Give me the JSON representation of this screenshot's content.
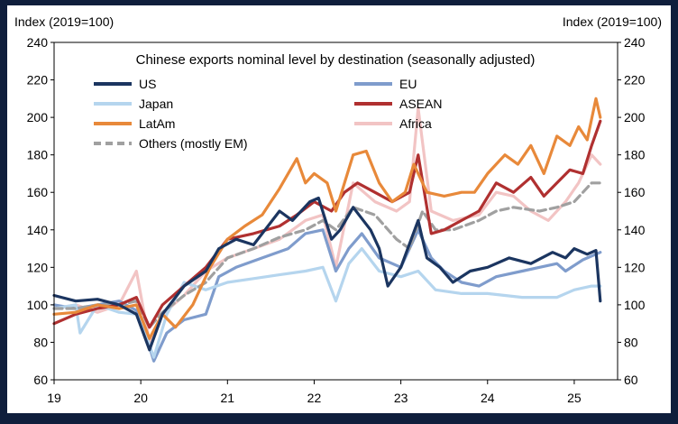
{
  "chart_data": {
    "type": "line",
    "title": "Chinese exports nominal level by destination (seasonally adjusted)",
    "left_axis_label": "Index (2019=100)",
    "right_axis_label": "Index (2019=100)",
    "ylim": [
      60,
      240
    ],
    "yticks": [
      "60",
      "80",
      "100",
      "120",
      "140",
      "160",
      "180",
      "200",
      "220",
      "240"
    ],
    "xlim": [
      2019.0,
      2025.5
    ],
    "xticks": [
      "19",
      "20",
      "21",
      "22",
      "23",
      "24",
      "25"
    ],
    "grid": false,
    "legend": "top-left, inside plot",
    "series": [
      {
        "name": "US",
        "color": "#1b3560",
        "dash": false,
        "x": [
          2019.0,
          2019.25,
          2019.5,
          2019.75,
          2019.95,
          2020.1,
          2020.25,
          2020.5,
          2020.75,
          2020.9,
          2021.1,
          2021.3,
          2021.6,
          2021.75,
          2021.95,
          2022.05,
          2022.2,
          2022.3,
          2022.45,
          2022.65,
          2022.75,
          2022.85,
          2023.0,
          2023.2,
          2023.3,
          2023.45,
          2023.6,
          2023.8,
          2024.0,
          2024.25,
          2024.5,
          2024.75,
          2024.9,
          2025.0,
          2025.15,
          2025.25,
          2025.3
        ],
        "y": [
          105,
          102,
          103,
          100,
          95,
          76,
          95,
          110,
          118,
          130,
          135,
          132,
          150,
          145,
          155,
          157,
          135,
          140,
          152,
          140,
          130,
          110,
          120,
          145,
          125,
          120,
          112,
          118,
          120,
          125,
          122,
          128,
          125,
          130,
          127,
          129,
          102
        ]
      },
      {
        "name": "EU",
        "color": "#7f9ccc",
        "dash": false,
        "x": [
          2019.0,
          2019.25,
          2019.5,
          2019.75,
          2019.95,
          2020.05,
          2020.15,
          2020.3,
          2020.5,
          2020.75,
          2020.9,
          2021.1,
          2021.4,
          2021.7,
          2021.9,
          2022.1,
          2022.25,
          2022.4,
          2022.55,
          2022.75,
          2023.0,
          2023.2,
          2023.35,
          2023.5,
          2023.7,
          2023.9,
          2024.1,
          2024.4,
          2024.6,
          2024.8,
          2024.9,
          2025.1,
          2025.3
        ],
        "y": [
          100,
          98,
          100,
          102,
          97,
          85,
          70,
          85,
          92,
          95,
          115,
          120,
          125,
          130,
          138,
          140,
          118,
          130,
          138,
          125,
          120,
          140,
          125,
          118,
          112,
          110,
          115,
          118,
          120,
          122,
          118,
          124,
          128
        ]
      },
      {
        "name": "Japan",
        "color": "#b5d5ee",
        "dash": false,
        "x": [
          2019.0,
          2019.25,
          2019.3,
          2019.5,
          2019.75,
          2019.95,
          2020.05,
          2020.15,
          2020.3,
          2020.5,
          2020.75,
          2021.0,
          2021.3,
          2021.6,
          2021.9,
          2022.1,
          2022.25,
          2022.4,
          2022.55,
          2022.75,
          2023.0,
          2023.2,
          2023.4,
          2023.7,
          2024.0,
          2024.4,
          2024.8,
          2025.0,
          2025.2,
          2025.3
        ],
        "y": [
          98,
          100,
          85,
          100,
          96,
          95,
          85,
          72,
          95,
          112,
          108,
          112,
          114,
          116,
          118,
          120,
          102,
          122,
          130,
          118,
          115,
          118,
          108,
          106,
          106,
          104,
          104,
          108,
          110,
          110
        ]
      },
      {
        "name": "ASEAN",
        "color": "#b03030",
        "dash": false,
        "x": [
          2019.0,
          2019.25,
          2019.5,
          2019.75,
          2019.95,
          2020.1,
          2020.25,
          2020.5,
          2020.75,
          2021.0,
          2021.3,
          2021.6,
          2021.8,
          2022.0,
          2022.2,
          2022.35,
          2022.5,
          2022.7,
          2022.9,
          2023.1,
          2023.2,
          2023.35,
          2023.5,
          2023.7,
          2023.9,
          2024.1,
          2024.3,
          2024.5,
          2024.65,
          2024.8,
          2024.95,
          2025.1,
          2025.2,
          2025.3
        ],
        "y": [
          90,
          95,
          98,
          100,
          104,
          88,
          100,
          110,
          120,
          135,
          138,
          142,
          148,
          155,
          150,
          160,
          165,
          160,
          155,
          160,
          180,
          138,
          140,
          145,
          150,
          165,
          160,
          168,
          158,
          165,
          172,
          170,
          185,
          198
        ]
      },
      {
        "name": "LatAm",
        "color": "#e8893a",
        "dash": false,
        "x": [
          2019.0,
          2019.25,
          2019.5,
          2019.75,
          2019.95,
          2020.1,
          2020.25,
          2020.4,
          2020.6,
          2020.8,
          2021.0,
          2021.2,
          2021.4,
          2021.6,
          2021.8,
          2021.9,
          2022.0,
          2022.15,
          2022.25,
          2022.45,
          2022.6,
          2022.75,
          2022.9,
          2023.05,
          2023.15,
          2023.3,
          2023.5,
          2023.7,
          2023.85,
          2024.0,
          2024.2,
          2024.35,
          2024.5,
          2024.65,
          2024.8,
          2024.95,
          2025.05,
          2025.15,
          2025.25,
          2025.3
        ],
        "y": [
          95,
          96,
          100,
          98,
          100,
          82,
          95,
          88,
          100,
          120,
          135,
          142,
          148,
          162,
          178,
          165,
          170,
          165,
          150,
          180,
          182,
          165,
          155,
          160,
          175,
          160,
          158,
          160,
          160,
          170,
          180,
          175,
          185,
          170,
          190,
          185,
          195,
          188,
          210,
          200
        ]
      },
      {
        "name": "Africa",
        "color": "#f2c4c4",
        "dash": false,
        "x": [
          2019.0,
          2019.25,
          2019.5,
          2019.75,
          2019.95,
          2020.1,
          2020.25,
          2020.5,
          2020.75,
          2021.0,
          2021.3,
          2021.6,
          2021.9,
          2022.1,
          2022.25,
          2022.45,
          2022.7,
          2022.95,
          2023.1,
          2023.2,
          2023.35,
          2023.6,
          2023.9,
          2024.1,
          2024.3,
          2024.5,
          2024.7,
          2024.9,
          2025.05,
          2025.2,
          2025.3
        ],
        "y": [
          98,
          100,
          96,
          100,
          118,
          80,
          95,
          105,
          118,
          125,
          130,
          135,
          145,
          148,
          120,
          165,
          155,
          150,
          155,
          205,
          150,
          145,
          148,
          160,
          158,
          150,
          145,
          155,
          165,
          180,
          175
        ]
      },
      {
        "name": "Others (mostly EM)",
        "color": "#a0a0a0",
        "dash": true,
        "x": [
          2019.0,
          2019.25,
          2019.5,
          2019.75,
          2019.95,
          2020.1,
          2020.25,
          2020.5,
          2020.75,
          2021.0,
          2021.3,
          2021.6,
          2021.9,
          2022.1,
          2022.25,
          2022.45,
          2022.7,
          2022.95,
          2023.1,
          2023.25,
          2023.4,
          2023.6,
          2023.9,
          2024.1,
          2024.3,
          2024.6,
          2024.8,
          2025.0,
          2025.2,
          2025.3
        ],
        "y": [
          98,
          98,
          100,
          100,
          102,
          88,
          96,
          105,
          112,
          125,
          130,
          136,
          140,
          145,
          140,
          152,
          148,
          135,
          130,
          150,
          140,
          140,
          145,
          150,
          152,
          150,
          152,
          155,
          165,
          165
        ]
      }
    ]
  }
}
